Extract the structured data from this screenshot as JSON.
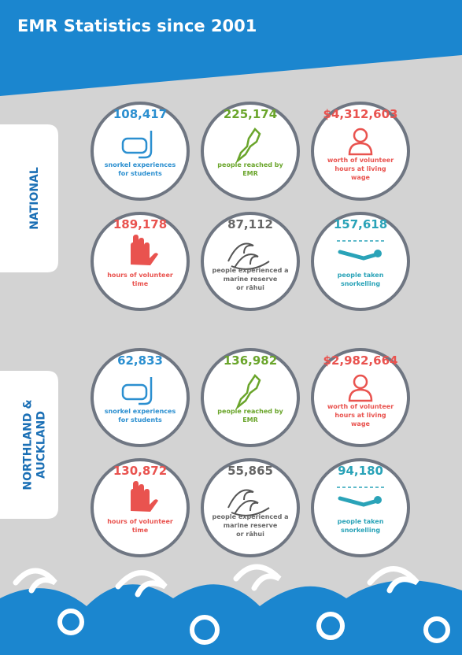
{
  "header": {
    "title": "EMR Statistics since 2001"
  },
  "sections": [
    {
      "tab": [
        "NATIONAL"
      ],
      "stats": [
        {
          "value": "108,417",
          "label": [
            "snorkel experiences",
            "for students"
          ]
        },
        {
          "value": "225,174",
          "label": [
            "people reached by",
            "EMR"
          ]
        },
        {
          "value": "$4,312,603",
          "label": [
            "worth of volunteer",
            "hours at living",
            "wage"
          ]
        },
        {
          "value": "189,178",
          "label": [
            "hours of volunteer",
            "time"
          ]
        },
        {
          "value": "87,112",
          "label": [
            "people experienced a",
            "marine reserve",
            "or rāhui"
          ]
        },
        {
          "value": "157,618",
          "label": [
            "people taken",
            "snorkelling"
          ]
        }
      ]
    },
    {
      "tab": [
        "NORTHLAND &",
        "AUCKLAND"
      ],
      "stats": [
        {
          "value": "62,833",
          "label": [
            "snorkel experiences",
            "for students"
          ]
        },
        {
          "value": "136,982",
          "label": [
            "people reached by",
            "EMR"
          ]
        },
        {
          "value": "$2,982,664",
          "label": [
            "worth of volunteer",
            "hours at living",
            "wage"
          ]
        },
        {
          "value": "130,872",
          "label": [
            "hours of volunteer",
            "time"
          ]
        },
        {
          "value": "55,865",
          "label": [
            "people experienced a",
            "marine reserve",
            "or rāhui"
          ]
        },
        {
          "value": "94,180",
          "label": [
            "people taken",
            "snorkelling"
          ]
        }
      ]
    }
  ]
}
